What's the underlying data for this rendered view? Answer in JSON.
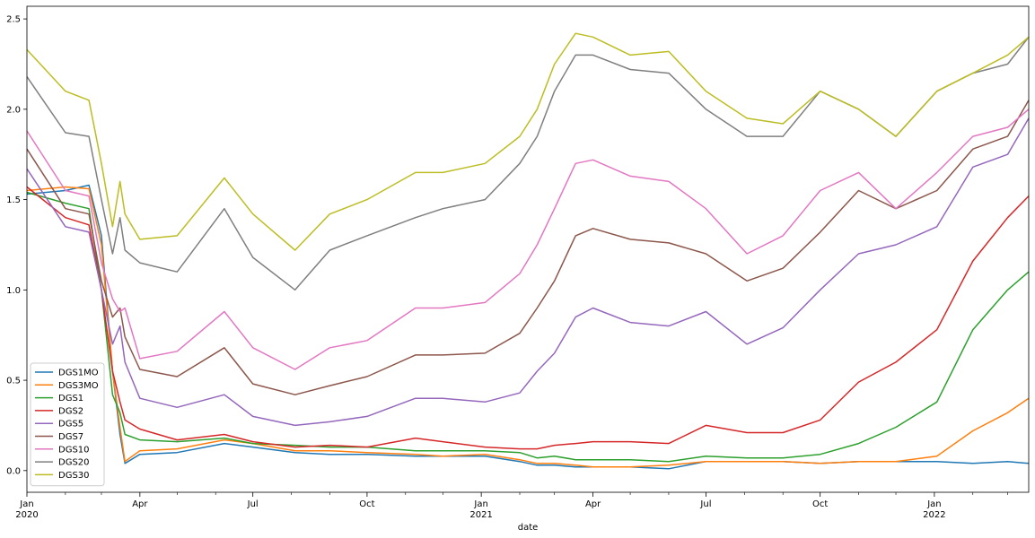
{
  "chart_data": {
    "type": "line",
    "xlabel": "date",
    "ylabel": "",
    "ylim": [
      -0.12,
      2.57
    ],
    "xlim": [
      "2020-01-01",
      "2022-03-18"
    ],
    "grid": false,
    "legend_position": "lower-left",
    "x_ticks": [
      {
        "date": "2020-01-01",
        "label": "Jan",
        "sublabel": "2020"
      },
      {
        "date": "2020-04-01",
        "label": "Apr",
        "sublabel": ""
      },
      {
        "date": "2020-07-01",
        "label": "Jul",
        "sublabel": ""
      },
      {
        "date": "2020-10-01",
        "label": "Oct",
        "sublabel": ""
      },
      {
        "date": "2021-01-01",
        "label": "Jan",
        "sublabel": "2021"
      },
      {
        "date": "2021-04-01",
        "label": "Apr",
        "sublabel": ""
      },
      {
        "date": "2021-07-01",
        "label": "Jul",
        "sublabel": ""
      },
      {
        "date": "2021-10-01",
        "label": "Oct",
        "sublabel": ""
      },
      {
        "date": "2022-01-01",
        "label": "Jan",
        "sublabel": "2022"
      }
    ],
    "y_ticks": [
      {
        "value": 0.0,
        "label": "0.0"
      },
      {
        "value": 0.5,
        "label": "0.5"
      },
      {
        "value": 1.0,
        "label": "1.0"
      },
      {
        "value": 1.5,
        "label": "1.5"
      },
      {
        "value": 2.0,
        "label": "2.0"
      },
      {
        "value": 2.5,
        "label": "2.5"
      }
    ],
    "dates": [
      "2020-01-01",
      "2020-02-01",
      "2020-02-20",
      "2020-03-01",
      "2020-03-10",
      "2020-03-16",
      "2020-03-20",
      "2020-04-01",
      "2020-05-01",
      "2020-06-08",
      "2020-07-01",
      "2020-08-04",
      "2020-09-01",
      "2020-10-01",
      "2020-11-09",
      "2020-12-01",
      "2021-01-04",
      "2021-02-01",
      "2021-02-15",
      "2021-03-01",
      "2021-03-18",
      "2021-04-01",
      "2021-05-01",
      "2021-06-01",
      "2021-07-01",
      "2021-08-03",
      "2021-09-01",
      "2021-10-01",
      "2021-11-01",
      "2021-12-01",
      "2022-01-03",
      "2022-02-01",
      "2022-03-01",
      "2022-03-18"
    ],
    "series": [
      {
        "name": "DGS1MO",
        "color": "#1f77b4",
        "values": [
          1.53,
          1.55,
          1.58,
          1.3,
          0.55,
          0.2,
          0.04,
          0.09,
          0.1,
          0.15,
          0.13,
          0.1,
          0.09,
          0.09,
          0.08,
          0.08,
          0.08,
          0.05,
          0.03,
          0.03,
          0.02,
          0.02,
          0.02,
          0.01,
          0.05,
          0.05,
          0.05,
          0.04,
          0.05,
          0.05,
          0.05,
          0.04,
          0.05,
          0.04
        ]
      },
      {
        "name": "DGS3MO",
        "color": "#ff7f0e",
        "values": [
          1.55,
          1.57,
          1.56,
          1.25,
          0.55,
          0.24,
          0.05,
          0.11,
          0.12,
          0.17,
          0.15,
          0.11,
          0.11,
          0.1,
          0.09,
          0.08,
          0.09,
          0.06,
          0.04,
          0.04,
          0.03,
          0.02,
          0.02,
          0.03,
          0.05,
          0.05,
          0.05,
          0.04,
          0.05,
          0.05,
          0.08,
          0.22,
          0.32,
          0.4
        ]
      },
      {
        "name": "DGS1",
        "color": "#2ca02c",
        "values": [
          1.54,
          1.48,
          1.45,
          1.0,
          0.42,
          0.32,
          0.2,
          0.17,
          0.16,
          0.18,
          0.15,
          0.14,
          0.13,
          0.13,
          0.11,
          0.11,
          0.11,
          0.1,
          0.07,
          0.08,
          0.06,
          0.06,
          0.06,
          0.05,
          0.08,
          0.07,
          0.07,
          0.09,
          0.15,
          0.24,
          0.38,
          0.78,
          1.0,
          1.1
        ]
      },
      {
        "name": "DGS2",
        "color": "#d62728",
        "values": [
          1.57,
          1.4,
          1.36,
          1.0,
          0.55,
          0.38,
          0.28,
          0.23,
          0.17,
          0.2,
          0.16,
          0.13,
          0.14,
          0.13,
          0.18,
          0.16,
          0.13,
          0.12,
          0.12,
          0.14,
          0.15,
          0.16,
          0.16,
          0.15,
          0.25,
          0.21,
          0.21,
          0.28,
          0.49,
          0.6,
          0.78,
          1.16,
          1.4,
          1.52
        ]
      },
      {
        "name": "DGS5",
        "color": "#9467bd",
        "values": [
          1.67,
          1.35,
          1.32,
          1.0,
          0.7,
          0.8,
          0.6,
          0.4,
          0.35,
          0.42,
          0.3,
          0.25,
          0.27,
          0.3,
          0.4,
          0.4,
          0.38,
          0.43,
          0.55,
          0.65,
          0.85,
          0.9,
          0.82,
          0.8,
          0.88,
          0.7,
          0.79,
          1.0,
          1.2,
          1.25,
          1.35,
          1.68,
          1.75,
          1.95
        ]
      },
      {
        "name": "DGS7",
        "color": "#8c564b",
        "values": [
          1.78,
          1.45,
          1.42,
          1.05,
          0.85,
          0.9,
          0.74,
          0.56,
          0.52,
          0.68,
          0.48,
          0.42,
          0.47,
          0.52,
          0.64,
          0.64,
          0.65,
          0.76,
          0.9,
          1.05,
          1.3,
          1.34,
          1.28,
          1.26,
          1.2,
          1.05,
          1.12,
          1.32,
          1.55,
          1.45,
          1.55,
          1.78,
          1.85,
          2.05
        ]
      },
      {
        "name": "DGS10",
        "color": "#e377c2",
        "values": [
          1.88,
          1.55,
          1.52,
          1.15,
          0.95,
          0.88,
          0.9,
          0.62,
          0.66,
          0.88,
          0.68,
          0.56,
          0.68,
          0.72,
          0.9,
          0.9,
          0.93,
          1.09,
          1.25,
          1.45,
          1.7,
          1.72,
          1.63,
          1.6,
          1.45,
          1.2,
          1.3,
          1.55,
          1.65,
          1.45,
          1.65,
          1.85,
          1.9,
          2.0
        ]
      },
      {
        "name": "DGS20",
        "color": "#7f7f7f",
        "values": [
          2.18,
          1.87,
          1.85,
          1.5,
          1.2,
          1.4,
          1.22,
          1.15,
          1.1,
          1.45,
          1.18,
          1.0,
          1.22,
          1.3,
          1.4,
          1.45,
          1.5,
          1.7,
          1.85,
          2.1,
          2.3,
          2.3,
          2.22,
          2.2,
          2.0,
          1.85,
          1.85,
          2.1,
          2.0,
          1.85,
          2.1,
          2.2,
          2.25,
          2.4
        ]
      },
      {
        "name": "DGS30",
        "color": "#bcbd22",
        "values": [
          2.33,
          2.1,
          2.05,
          1.7,
          1.35,
          1.6,
          1.42,
          1.28,
          1.3,
          1.62,
          1.42,
          1.22,
          1.42,
          1.5,
          1.65,
          1.65,
          1.7,
          1.85,
          2.0,
          2.25,
          2.42,
          2.4,
          2.3,
          2.32,
          2.1,
          1.95,
          1.92,
          2.1,
          2.0,
          1.85,
          2.1,
          2.2,
          2.3,
          2.4
        ]
      }
    ]
  }
}
